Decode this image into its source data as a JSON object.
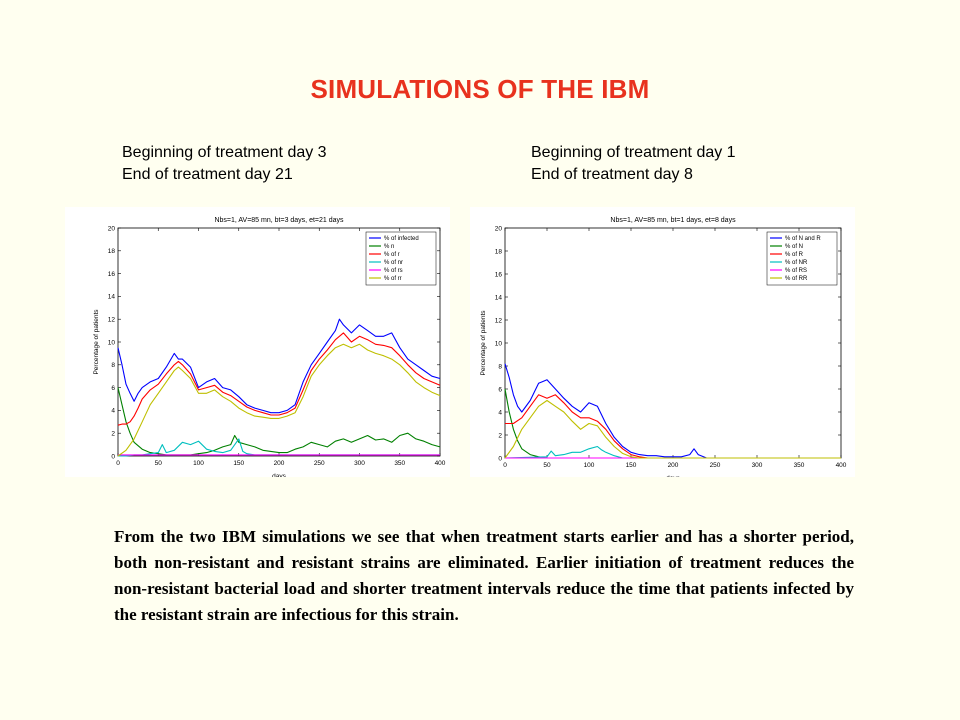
{
  "slide": {
    "title": "SIMULATIONS OF THE IBM",
    "left_caption": [
      "Beginning of treatment day 3",
      "End of treatment day 21"
    ],
    "right_caption": [
      "Beginning of treatment day 1",
      "End of treatment day 8"
    ],
    "paragraph": "From the two IBM simulations we see that when treatment starts earlier and has a shorter period, both non-resistant and resistant strains are eliminated. Earlier initiation of treatment reduces the non-resistant bacterial load and shorter treatment intervals reduce the time that patients infected by the resistant strain are infectious for this strain.",
    "colors": {
      "title": "#e8321e",
      "background": "#fffff0"
    }
  },
  "chart_data": [
    {
      "type": "line",
      "title": "Nbs=1, AV=85 mn, bt=3 days, et=21 days",
      "xlabel": "days",
      "ylabel": "Percentage of patients",
      "xlim": [
        0,
        400
      ],
      "ylim": [
        0,
        20
      ],
      "xticks": [
        0,
        50,
        100,
        150,
        200,
        250,
        300,
        350,
        400
      ],
      "yticks": [
        0,
        2,
        4,
        6,
        8,
        10,
        12,
        14,
        16,
        18,
        20
      ],
      "grid": false,
      "legend_position": "top-right",
      "series": [
        {
          "name": "% of infected",
          "color": "#0000ff",
          "x": [
            0,
            5,
            10,
            15,
            20,
            25,
            30,
            40,
            50,
            60,
            70,
            75,
            80,
            90,
            100,
            110,
            120,
            130,
            140,
            150,
            160,
            170,
            180,
            190,
            200,
            210,
            220,
            225,
            230,
            240,
            250,
            260,
            270,
            275,
            280,
            290,
            300,
            310,
            320,
            330,
            340,
            350,
            360,
            370,
            380,
            390,
            400
          ],
          "y": [
            9.5,
            8,
            6.3,
            5.5,
            4.8,
            5.5,
            6,
            6.5,
            6.8,
            7.8,
            9,
            8.5,
            8.5,
            7.8,
            6,
            6.5,
            6.8,
            6,
            5.8,
            5.2,
            4.5,
            4.2,
            4,
            3.8,
            3.8,
            4,
            4.5,
            5.5,
            6.5,
            8,
            9,
            10,
            11,
            12,
            11.5,
            10.8,
            11.5,
            11,
            10.5,
            10.5,
            10.8,
            9.5,
            8.5,
            8,
            7.5,
            7,
            6.8
          ]
        },
        {
          "name": "% n",
          "color": "#008000",
          "x": [
            0,
            5,
            10,
            15,
            20,
            30,
            40,
            50,
            60,
            70,
            80,
            90,
            100,
            110,
            120,
            130,
            140,
            145,
            150,
            160,
            170,
            180,
            190,
            200,
            210,
            220,
            230,
            240,
            250,
            260,
            270,
            280,
            290,
            300,
            310,
            320,
            330,
            340,
            350,
            360,
            370,
            380,
            390,
            400
          ],
          "y": [
            6,
            4.5,
            3,
            2,
            1.2,
            0.6,
            0.3,
            0.2,
            0.1,
            0.1,
            0.1,
            0.1,
            0.2,
            0.3,
            0.5,
            0.8,
            1,
            1.8,
            1.2,
            1,
            0.8,
            0.5,
            0.4,
            0.3,
            0.3,
            0.6,
            0.8,
            1.2,
            1,
            0.8,
            1.3,
            1.5,
            1.2,
            1.5,
            1.8,
            1.4,
            1.5,
            1.2,
            1.8,
            2,
            1.5,
            1.3,
            1,
            0.8
          ]
        },
        {
          "name": "% of r",
          "color": "#ff0000",
          "x": [
            0,
            5,
            10,
            15,
            20,
            25,
            30,
            40,
            50,
            60,
            70,
            75,
            80,
            90,
            100,
            110,
            120,
            130,
            140,
            150,
            160,
            170,
            180,
            190,
            200,
            210,
            220,
            230,
            240,
            250,
            260,
            270,
            280,
            290,
            300,
            310,
            320,
            330,
            340,
            350,
            360,
            370,
            380,
            390,
            400
          ],
          "y": [
            2.7,
            2.8,
            2.8,
            3,
            3.5,
            4.2,
            5,
            5.8,
            6.3,
            7.2,
            8,
            8.3,
            8,
            7.2,
            5.8,
            6,
            6.2,
            5.6,
            5.3,
            4.8,
            4.3,
            4,
            3.8,
            3.6,
            3.6,
            3.8,
            4.2,
            5.8,
            7.5,
            8.5,
            9.3,
            10.2,
            10.8,
            10,
            10.5,
            10.2,
            9.8,
            9.7,
            9.5,
            8.8,
            8,
            7.3,
            6.8,
            6.5,
            6.2
          ]
        },
        {
          "name": "% of nr",
          "color": "#00bfbf",
          "x": [
            0,
            10,
            20,
            30,
            40,
            50,
            55,
            60,
            70,
            80,
            90,
            100,
            110,
            120,
            130,
            140,
            150,
            155,
            160,
            170,
            180,
            190,
            200,
            210,
            220,
            230,
            240,
            250,
            260,
            270,
            280,
            290,
            300,
            310,
            320,
            330,
            340,
            350,
            360,
            370,
            380,
            390,
            400
          ],
          "y": [
            0,
            0,
            0.1,
            0.1,
            0.2,
            0.3,
            1,
            0.3,
            0.5,
            1.2,
            1,
            1.3,
            0.6,
            0.4,
            0.3,
            0.5,
            1.5,
            0.4,
            0.2,
            0.1,
            0.1,
            0.1,
            0.1,
            0.1,
            0.1,
            0.1,
            0.1,
            0.1,
            0.1,
            0.1,
            0.1,
            0.1,
            0.1,
            0.1,
            0.1,
            0.1,
            0.1,
            0.1,
            0.1,
            0.1,
            0.1,
            0.1,
            0.1
          ]
        },
        {
          "name": "% of rs",
          "color": "#ff00ff",
          "x": [
            0,
            400
          ],
          "y": [
            0.1,
            0.1
          ]
        },
        {
          "name": "% of rr",
          "color": "#bfbf00",
          "x": [
            0,
            10,
            20,
            30,
            40,
            50,
            60,
            70,
            75,
            80,
            90,
            100,
            110,
            120,
            130,
            140,
            150,
            160,
            170,
            180,
            190,
            200,
            210,
            220,
            230,
            240,
            250,
            260,
            270,
            280,
            290,
            300,
            310,
            320,
            330,
            340,
            350,
            360,
            370,
            380,
            390,
            400
          ],
          "y": [
            0,
            0.5,
            1.5,
            3,
            4.5,
            5.5,
            6.5,
            7.5,
            7.8,
            7.5,
            6.8,
            5.5,
            5.5,
            5.8,
            5.2,
            4.8,
            4.2,
            3.8,
            3.5,
            3.4,
            3.3,
            3.3,
            3.5,
            3.8,
            5.2,
            7,
            8,
            8.8,
            9.5,
            9.8,
            9.5,
            9.8,
            9.3,
            9,
            8.8,
            8.5,
            8,
            7.3,
            6.5,
            6,
            5.6,
            5.3
          ]
        }
      ]
    },
    {
      "type": "line",
      "title": "Nbs=1, AV=85 mn, bt=1 days, et=8 days",
      "xlabel": "days",
      "ylabel": "Percentage of patients",
      "xlim": [
        0,
        400
      ],
      "ylim": [
        0,
        20
      ],
      "xticks": [
        0,
        50,
        100,
        150,
        200,
        250,
        300,
        350,
        400
      ],
      "yticks": [
        0,
        2,
        4,
        6,
        8,
        10,
        12,
        14,
        16,
        18,
        20
      ],
      "grid": false,
      "legend_position": "top-right",
      "series": [
        {
          "name": "% of N and R",
          "color": "#0000ff",
          "x": [
            0,
            5,
            10,
            15,
            20,
            30,
            40,
            50,
            60,
            70,
            80,
            90,
            100,
            110,
            120,
            130,
            140,
            150,
            160,
            170,
            180,
            190,
            200,
            210,
            220,
            225,
            230,
            240,
            250,
            300,
            350,
            400
          ],
          "y": [
            8.2,
            7,
            5.5,
            4.5,
            4,
            5,
            6.5,
            6.8,
            6,
            5.2,
            4.5,
            4,
            4.8,
            4.5,
            3,
            1.8,
            1,
            0.5,
            0.3,
            0.2,
            0.2,
            0.1,
            0.1,
            0.1,
            0.3,
            0.8,
            0.3,
            0,
            0,
            0,
            0,
            0
          ]
        },
        {
          "name": "% of N",
          "color": "#008000",
          "x": [
            0,
            5,
            10,
            15,
            20,
            30,
            40,
            50,
            60,
            400
          ],
          "y": [
            6,
            4,
            2.5,
            1.5,
            0.8,
            0.3,
            0.1,
            0,
            0,
            0
          ]
        },
        {
          "name": "% of R",
          "color": "#ff0000",
          "x": [
            0,
            10,
            20,
            30,
            40,
            50,
            60,
            70,
            80,
            90,
            100,
            110,
            120,
            130,
            140,
            150,
            160,
            170,
            400
          ],
          "y": [
            3,
            3,
            3.5,
            4.5,
            5.5,
            5.2,
            5.5,
            4.8,
            4,
            3.5,
            3.5,
            3.2,
            2.5,
            1.5,
            0.8,
            0.3,
            0.1,
            0,
            0
          ]
        },
        {
          "name": "% of NR",
          "color": "#00bfbf",
          "x": [
            0,
            50,
            55,
            60,
            70,
            80,
            90,
            100,
            110,
            115,
            120,
            130,
            140,
            400
          ],
          "y": [
            0,
            0.1,
            0.6,
            0.2,
            0.3,
            0.5,
            0.5,
            0.8,
            1,
            0.7,
            0.5,
            0.2,
            0,
            0
          ]
        },
        {
          "name": "% of RS",
          "color": "#ff00ff",
          "x": [
            0,
            400
          ],
          "y": [
            0,
            0
          ]
        },
        {
          "name": "% of RR",
          "color": "#bfbf00",
          "x": [
            0,
            10,
            20,
            30,
            40,
            50,
            60,
            70,
            80,
            90,
            100,
            110,
            120,
            130,
            140,
            150,
            160,
            400
          ],
          "y": [
            0,
            1,
            2.5,
            3.5,
            4.5,
            5,
            4.5,
            4,
            3.2,
            2.5,
            3,
            2.8,
            1.8,
            1,
            0.4,
            0.1,
            0,
            0
          ]
        }
      ]
    }
  ]
}
